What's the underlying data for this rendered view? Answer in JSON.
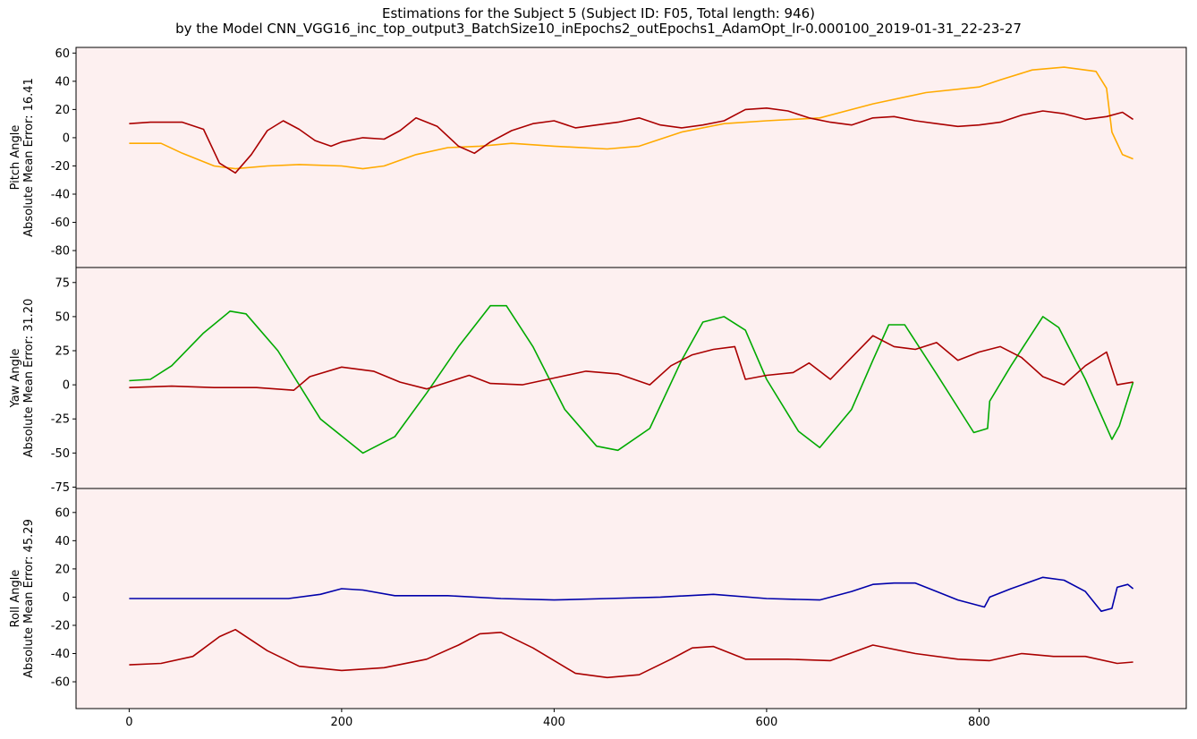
{
  "title": {
    "line1": "Estimations for the Subject 5 (Subject ID: F05, Total length: 946)",
    "line2": "by the Model CNN_VGG16_inc_top_output3_BatchSize10_inEpochs2_outEpochs1_AdamOpt_lr-0.000100_2019-01-31_22-23-27"
  },
  "colors": {
    "background": "#fdf0f0",
    "estimation": "#aa0000",
    "pitch_truth": "#ffaa00",
    "yaw_truth": "#00aa00",
    "roll_truth": "#0000aa"
  },
  "chart_data": [
    {
      "type": "line",
      "ylabel_line1": "Pitch Angle",
      "ylabel_line2": "Absolute Mean Error: 16.41",
      "xlim": [
        -50,
        995
      ],
      "ylim": [
        -92,
        64
      ],
      "yticks": [
        60,
        40,
        20,
        0,
        -20,
        -40,
        -60,
        -80
      ],
      "grid": false,
      "series": [
        {
          "role": "ground-truth",
          "color": "#ffaa00",
          "x": [
            0,
            30,
            50,
            80,
            100,
            130,
            160,
            200,
            220,
            240,
            270,
            300,
            330,
            360,
            400,
            450,
            480,
            520,
            560,
            600,
            650,
            700,
            750,
            800,
            820,
            850,
            880,
            910,
            920,
            925,
            935,
            945
          ],
          "y": [
            -4,
            -4,
            -11,
            -20,
            -22,
            -20,
            -19,
            -20,
            -22,
            -20,
            -12,
            -7,
            -6,
            -4,
            -6,
            -8,
            -6,
            4,
            10,
            12,
            14,
            24,
            32,
            36,
            41,
            48,
            50,
            47,
            35,
            4,
            -12,
            -15
          ]
        },
        {
          "role": "estimation",
          "color": "#aa0000",
          "x": [
            0,
            20,
            50,
            70,
            85,
            100,
            115,
            130,
            145,
            160,
            175,
            190,
            200,
            220,
            240,
            255,
            270,
            290,
            310,
            325,
            340,
            360,
            380,
            400,
            420,
            440,
            460,
            480,
            500,
            520,
            540,
            560,
            580,
            600,
            620,
            640,
            660,
            680,
            700,
            720,
            740,
            760,
            780,
            800,
            820,
            840,
            860,
            880,
            900,
            920,
            935,
            945
          ],
          "y": [
            10,
            11,
            11,
            6,
            -18,
            -25,
            -12,
            5,
            12,
            6,
            -2,
            -6,
            -3,
            0,
            -1,
            5,
            14,
            8,
            -6,
            -11,
            -3,
            5,
            10,
            12,
            7,
            9,
            11,
            14,
            9,
            7,
            9,
            12,
            20,
            21,
            19,
            14,
            11,
            9,
            14,
            15,
            12,
            10,
            8,
            9,
            11,
            16,
            19,
            17,
            13,
            15,
            18,
            13
          ]
        }
      ]
    },
    {
      "type": "line",
      "ylabel_line1": "Yaw Angle",
      "ylabel_line2": "Absolute Mean Error: 31.20",
      "xlim": [
        -50,
        995
      ],
      "ylim": [
        -76,
        86
      ],
      "yticks": [
        75,
        50,
        25,
        0,
        -25,
        -50,
        -75
      ],
      "grid": false,
      "series": [
        {
          "role": "ground-truth",
          "color": "#00aa00",
          "x": [
            0,
            20,
            40,
            70,
            95,
            110,
            140,
            180,
            220,
            250,
            280,
            310,
            340,
            355,
            380,
            410,
            440,
            460,
            490,
            520,
            540,
            560,
            580,
            600,
            630,
            650,
            680,
            700,
            715,
            730,
            760,
            795,
            808,
            810,
            830,
            860,
            875,
            900,
            925,
            932,
            945
          ],
          "y": [
            3,
            4,
            14,
            38,
            54,
            52,
            25,
            -25,
            -50,
            -38,
            -6,
            28,
            58,
            58,
            28,
            -18,
            -45,
            -48,
            -32,
            18,
            46,
            50,
            40,
            4,
            -34,
            -46,
            -18,
            18,
            44,
            44,
            8,
            -35,
            -32,
            -12,
            14,
            50,
            42,
            4,
            -40,
            -30,
            2
          ]
        },
        {
          "role": "estimation",
          "color": "#aa0000",
          "x": [
            0,
            40,
            80,
            120,
            155,
            170,
            200,
            230,
            255,
            280,
            300,
            320,
            340,
            370,
            400,
            430,
            460,
            490,
            510,
            530,
            550,
            570,
            580,
            600,
            625,
            640,
            660,
            680,
            700,
            720,
            740,
            760,
            780,
            800,
            820,
            840,
            860,
            880,
            900,
            920,
            930,
            945
          ],
          "y": [
            -2,
            -1,
            -2,
            -2,
            -4,
            6,
            13,
            10,
            2,
            -3,
            2,
            7,
            1,
            0,
            5,
            10,
            8,
            0,
            14,
            22,
            26,
            28,
            4,
            7,
            9,
            16,
            4,
            20,
            36,
            28,
            26,
            31,
            18,
            24,
            28,
            20,
            6,
            0,
            14,
            24,
            0,
            2
          ]
        }
      ]
    },
    {
      "type": "line",
      "ylabel_line1": "Roll Angle",
      "ylabel_line2": "Absolute Mean Error: 45.29",
      "xlim": [
        -50,
        995
      ],
      "ylim": [
        -79,
        77
      ],
      "yticks": [
        60,
        40,
        20,
        0,
        -20,
        -40,
        -60
      ],
      "grid": false,
      "series": [
        {
          "role": "ground-truth",
          "color": "#0000aa",
          "x": [
            0,
            50,
            100,
            150,
            180,
            200,
            220,
            250,
            300,
            350,
            400,
            450,
            500,
            550,
            600,
            650,
            680,
            700,
            720,
            740,
            760,
            780,
            805,
            810,
            830,
            860,
            880,
            900,
            915,
            925,
            930,
            940,
            945
          ],
          "y": [
            -1,
            -1,
            -1,
            -1,
            2,
            6,
            5,
            1,
            1,
            -1,
            -2,
            -1,
            0,
            2,
            -1,
            -2,
            4,
            9,
            10,
            10,
            4,
            -2,
            -7,
            0,
            6,
            14,
            12,
            4,
            -10,
            -8,
            7,
            9,
            6
          ]
        },
        {
          "role": "estimation",
          "color": "#aa0000",
          "x": [
            0,
            30,
            60,
            85,
            100,
            130,
            160,
            200,
            240,
            280,
            310,
            330,
            350,
            380,
            420,
            450,
            480,
            510,
            530,
            550,
            580,
            620,
            660,
            700,
            740,
            780,
            810,
            840,
            870,
            900,
            930,
            945
          ],
          "y": [
            -48,
            -47,
            -42,
            -28,
            -23,
            -38,
            -49,
            -52,
            -50,
            -44,
            -34,
            -26,
            -25,
            -36,
            -54,
            -57,
            -55,
            -44,
            -36,
            -35,
            -44,
            -44,
            -45,
            -34,
            -40,
            -44,
            -45,
            -40,
            -42,
            -42,
            -47,
            -46
          ]
        }
      ]
    }
  ],
  "xaxis": {
    "ticks": [
      0,
      200,
      400,
      600,
      800
    ]
  }
}
